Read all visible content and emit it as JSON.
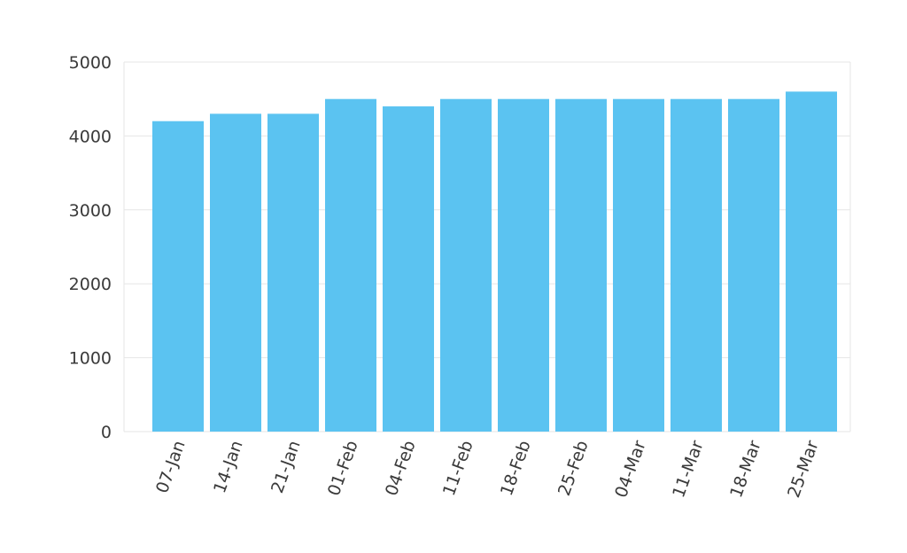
{
  "chart_data": {
    "type": "bar",
    "title": "",
    "xlabel": "",
    "ylabel": "",
    "categories": [
      "07-Jan",
      "14-Jan",
      "21-Jan",
      "01-Feb",
      "04-Feb",
      "11-Feb",
      "18-Feb",
      "25-Feb",
      "04-Mar",
      "11-Mar",
      "18-Mar",
      "25-Mar"
    ],
    "values": [
      4200,
      4300,
      4300,
      4500,
      4400,
      4500,
      4500,
      4500,
      4500,
      4500,
      4500,
      4600
    ],
    "ylim": [
      0,
      5000
    ],
    "yticks": [
      0,
      1000,
      2000,
      3000,
      4000,
      5000
    ],
    "grid": true,
    "legend": "none",
    "colors": {
      "bar": "#5bc3f1",
      "grid": "#e6e6e6",
      "axis_text": "#3a3a3a"
    }
  }
}
